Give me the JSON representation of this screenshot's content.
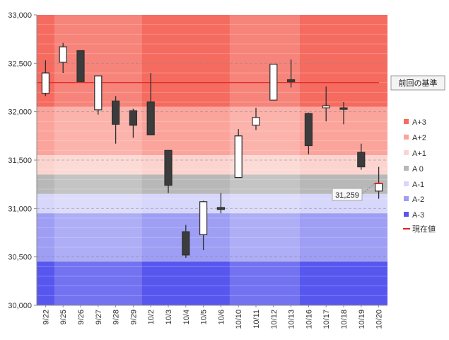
{
  "chart_data": {
    "type": "candlestick",
    "ylim": [
      30000,
      33000
    ],
    "y_ticks": [
      "30,000",
      "30,500",
      "31,000",
      "31,500",
      "32,000",
      "32,500",
      "33,000"
    ],
    "categories": [
      "9/22",
      "9/25",
      "9/26",
      "9/27",
      "9/28",
      "9/29",
      "10/2",
      "10/3",
      "10/4",
      "10/5",
      "10/6",
      "10/10",
      "10/11",
      "10/12",
      "10/13",
      "10/16",
      "10/17",
      "10/18",
      "10/19",
      "10/20"
    ],
    "candles": [
      {
        "open": 32190,
        "high": 32530,
        "low": 32160,
        "close": 32400
      },
      {
        "open": 32510,
        "high": 32710,
        "low": 32400,
        "close": 32670
      },
      {
        "open": 32630,
        "high": 32630,
        "low": 32310,
        "close": 32310
      },
      {
        "open": 32020,
        "high": 32370,
        "low": 31970,
        "close": 32370
      },
      {
        "open": 32110,
        "high": 32160,
        "low": 31670,
        "close": 31870
      },
      {
        "open": 32010,
        "high": 32030,
        "low": 31730,
        "close": 31860
      },
      {
        "open": 32100,
        "high": 32400,
        "low": 31760,
        "close": 31760
      },
      {
        "open": 31600,
        "high": 31600,
        "low": 31160,
        "close": 31240
      },
      {
        "open": 30760,
        "high": 30830,
        "low": 30490,
        "close": 30520
      },
      {
        "open": 30730,
        "high": 31080,
        "low": 30570,
        "close": 31070
      },
      {
        "open": 31010,
        "high": 31160,
        "low": 30950,
        "close": 30990
      },
      {
        "open": 31320,
        "high": 31820,
        "low": 31320,
        "close": 31750
      },
      {
        "open": 31860,
        "high": 32040,
        "low": 31810,
        "close": 31940
      },
      {
        "open": 32120,
        "high": 32490,
        "low": 32120,
        "close": 32490
      },
      {
        "open": 32330,
        "high": 32540,
        "low": 32250,
        "close": 32310
      },
      {
        "open": 31980,
        "high": 31990,
        "low": 31560,
        "close": 31650
      },
      {
        "open": 32040,
        "high": 32260,
        "low": 31900,
        "close": 32060
      },
      {
        "open": 32040,
        "high": 32100,
        "low": 31870,
        "close": 32030
      },
      {
        "open": 31580,
        "high": 31670,
        "low": 31400,
        "close": 31430
      },
      {
        "open": 31180,
        "high": 31430,
        "low": 31100,
        "close": 31259
      }
    ],
    "bands": [
      {
        "name": "A+3",
        "from": 32050,
        "to": 33000,
        "color": "#f56b60"
      },
      {
        "name": "A+2",
        "from": 31550,
        "to": 32050,
        "color": "#fba49c"
      },
      {
        "name": "A+1",
        "from": 31350,
        "to": 31550,
        "color": "#fcd4cf"
      },
      {
        "name": "A 0",
        "from": 31150,
        "to": 31350,
        "color": "#b8b8b8"
      },
      {
        "name": "A-1",
        "from": 30950,
        "to": 31150,
        "color": "#d7d7fb"
      },
      {
        "name": "A-2",
        "from": 30450,
        "to": 30950,
        "color": "#9e9ef4"
      },
      {
        "name": "A-3",
        "from": 30000,
        "to": 30450,
        "color": "#5757ef"
      }
    ],
    "reference_line": {
      "label": "前回の基準",
      "value": 32300,
      "color": "#e2221c"
    },
    "current_value": {
      "value": 31259,
      "label": "31,259"
    },
    "legend": [
      {
        "name": "A+3",
        "color": "#f56b60",
        "kind": "box"
      },
      {
        "name": "A+2",
        "color": "#fba49c",
        "kind": "box"
      },
      {
        "name": "A+1",
        "color": "#fcd4cf",
        "kind": "box"
      },
      {
        "name": "A 0",
        "color": "#b8b8b8",
        "kind": "box"
      },
      {
        "name": "A-1",
        "color": "#d7d7fb",
        "kind": "box"
      },
      {
        "name": "A-2",
        "color": "#9e9ef4",
        "kind": "box"
      },
      {
        "name": "A-3",
        "color": "#5757ef",
        "kind": "box"
      },
      {
        "name": "現在値",
        "color": "#e2221c",
        "kind": "line"
      }
    ],
    "up_color": "#ffffff",
    "down_color": "#3c3c3c"
  }
}
